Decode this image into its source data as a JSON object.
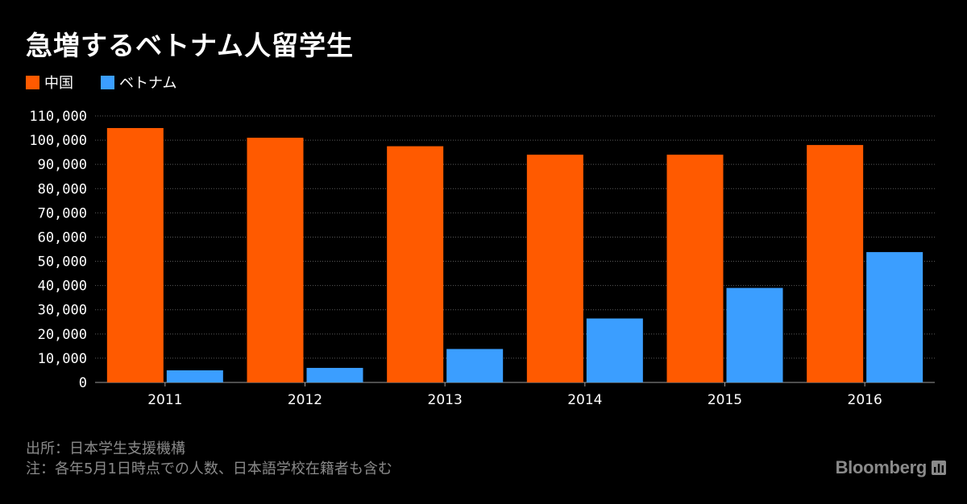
{
  "title": "急増するベトナム人留学生",
  "legend": [
    {
      "label": "中国",
      "color": "#ff5a00"
    },
    {
      "label": "ベトナム",
      "color": "#3b9eff"
    }
  ],
  "chart_data": {
    "type": "bar",
    "title": "急増するベトナム人留学生",
    "categories": [
      "2011",
      "2012",
      "2013",
      "2014",
      "2015",
      "2016"
    ],
    "series": [
      {
        "name": "中国",
        "color": "#ff5a00",
        "values": [
          105000,
          101000,
          97500,
          94000,
          94000,
          98000
        ]
      },
      {
        "name": "ベトナム",
        "color": "#3b9eff",
        "values": [
          5000,
          6000,
          13800,
          26400,
          39000,
          53800
        ]
      }
    ],
    "ylim": [
      0,
      110000
    ],
    "yticks": [
      0,
      10000,
      20000,
      30000,
      40000,
      50000,
      60000,
      70000,
      80000,
      90000,
      100000,
      110000
    ],
    "ytick_labels": [
      "0",
      "10,000",
      "20,000",
      "30,000",
      "40,000",
      "50,000",
      "60,000",
      "70,000",
      "80,000",
      "90,000",
      "100,000",
      "110,000"
    ],
    "grid": true,
    "legend_position": "top-left"
  },
  "footer": {
    "source": "出所：日本学生支援機構",
    "note": "注：各年5月1日時点での人数、日本語学校在籍者も含む"
  },
  "logo": {
    "text": "Bloomberg",
    "icon": "bloomberg-bars-icon"
  }
}
